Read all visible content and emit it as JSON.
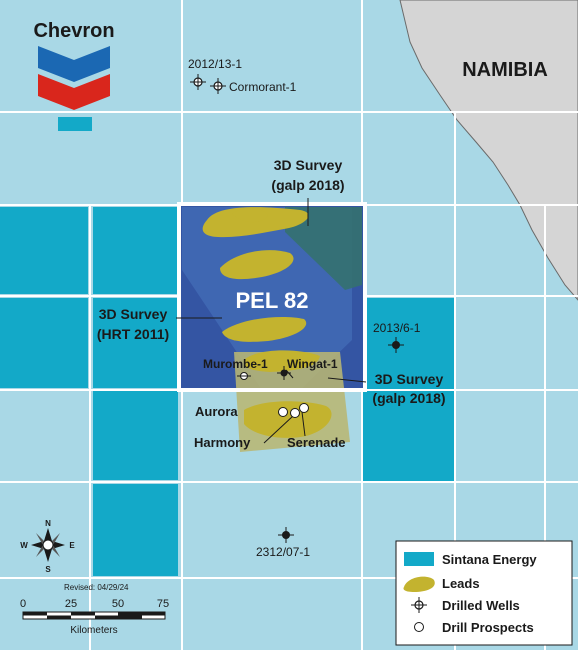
{
  "brand": {
    "name": "Chevron"
  },
  "country_label": "NAMIBIA",
  "block_label": "PEL 82",
  "surveys": {
    "top": {
      "line1": "3D Survey",
      "line2": "(galp 2018)"
    },
    "left": {
      "line1": "3D Survey",
      "line2": "(HRT 2011)"
    },
    "right": {
      "line1": "3D Survey",
      "line2": "(galp 2018)"
    }
  },
  "wells": {
    "w2012": "2012/13-1",
    "cormorant": "Cormorant-1",
    "w2013": "2013/6-1",
    "murombe": "Murombe-1",
    "wingat": "Wingat-1",
    "w2312": "2312/07-1"
  },
  "prospects": {
    "aurora": "Aurora",
    "harmony": "Harmony",
    "serenade": "Serenade"
  },
  "legend": {
    "sintana": "Sintana Energy",
    "leads": "Leads",
    "drilled": "Drilled Wells",
    "prospects": "Drill Prospects"
  },
  "compass": {
    "n": "N",
    "s": "S",
    "e": "E",
    "w": "W"
  },
  "revised": "Revised: 04/29/24",
  "scale": {
    "ticks": [
      "0",
      "25",
      "50",
      "75"
    ],
    "unit": "Kilometers"
  },
  "colors": {
    "sea": "#a9d8e6",
    "sintana": "#13a9c8",
    "land": "#d5d5d5",
    "block": "#3455a3",
    "leads": "#c3b32f",
    "survey_green": "#34716f",
    "survey_khaki": "#b8b673",
    "grid": "#ffffff"
  }
}
